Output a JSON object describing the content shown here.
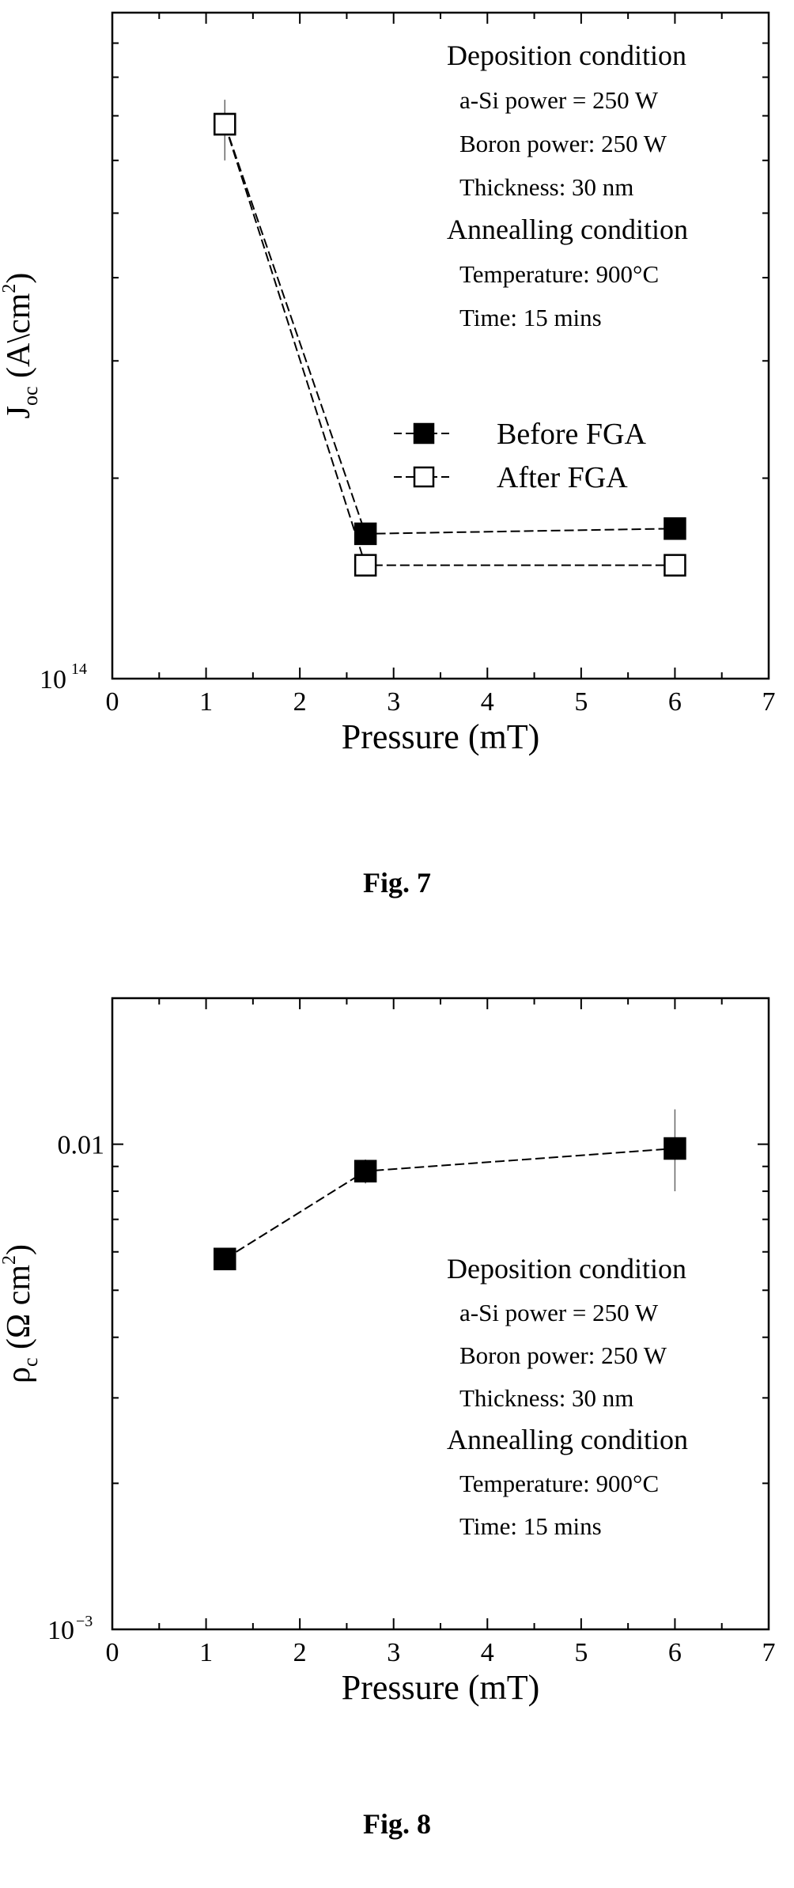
{
  "figures": [
    {
      "caption": "Fig. 7"
    },
    {
      "caption": "Fig. 8"
    }
  ],
  "chart_data": [
    {
      "type": "line",
      "title": "",
      "xlabel": "Pressure (mT)",
      "ylabel": "J0c (A\\cm2)",
      "ylabel_parts": {
        "main": "J",
        "sub": "oc",
        "unit_open": " (A\\cm",
        "unit_sup": "2",
        "unit_close": ")"
      },
      "xlim": [
        0,
        7
      ],
      "ylim": [
        100000000000000.0,
        1000000000000000.0
      ],
      "y_scale": "log",
      "xticks": [
        0,
        1,
        2,
        3,
        4,
        5,
        6,
        7
      ],
      "x_tick_labels": [
        "0",
        "1",
        "2",
        "3",
        "4",
        "5",
        "6",
        "7"
      ],
      "y_tick_label": {
        "base": "10",
        "exp": "14"
      },
      "series": [
        {
          "name": "Before FGA",
          "marker": "filled-square",
          "x": [
            1.2,
            2.7,
            6.0
          ],
          "y": [
            680000000000000.0,
            165000000000000.0,
            168000000000000.0
          ]
        },
        {
          "name": "After FGA",
          "marker": "open-square",
          "x": [
            1.2,
            2.7,
            6.0
          ],
          "y": [
            680000000000000.0,
            148000000000000.0,
            148000000000000.0
          ]
        }
      ],
      "error_bars": [
        {
          "x": 1.2,
          "y_low": 600000000000000.0,
          "y_high": 740000000000000.0
        }
      ],
      "legend_placement": "middle-right",
      "annotations": [
        {
          "text": "Deposition condition",
          "style": "heading"
        },
        {
          "text": "a-Si power = 250 W",
          "style": "item"
        },
        {
          "text": "Boron power: 250 W",
          "style": "item"
        },
        {
          "text": "Thickness: 30 nm",
          "style": "item"
        },
        {
          "text": "Annealling condition",
          "style": "heading"
        },
        {
          "text": "Temperature: 900°C",
          "style": "item"
        },
        {
          "text": "Time: 15 mins",
          "style": "item"
        }
      ]
    },
    {
      "type": "line",
      "title": "",
      "xlabel": "Pressure (mT)",
      "ylabel": "ρc (Ω cm2)",
      "ylabel_parts": {
        "main": "ρ",
        "sub": "c",
        "unit_open": " (Ω cm",
        "unit_sup": "2",
        "unit_close": ")"
      },
      "xlim": [
        0,
        7
      ],
      "ylim": [
        0.001,
        0.02
      ],
      "y_scale": "log",
      "xticks": [
        0,
        1,
        2,
        3,
        4,
        5,
        6,
        7
      ],
      "x_tick_labels": [
        "0",
        "1",
        "2",
        "3",
        "4",
        "5",
        "6",
        "7"
      ],
      "y_tick_labels": [
        {
          "value": 0.01,
          "label": "0.01"
        },
        {
          "value": 0.001,
          "base": "10",
          "exp": "−3"
        }
      ],
      "series": [
        {
          "x": [
            1.2,
            2.7,
            6.0
          ],
          "y": [
            0.0058,
            0.0088,
            0.0098
          ],
          "marker": "filled-square"
        }
      ],
      "error_bars": [
        {
          "x": 1.2,
          "y_low": 0.0055,
          "y_high": 0.0061
        },
        {
          "x": 2.7,
          "y_low": 0.0083,
          "y_high": 0.0093
        },
        {
          "x": 6.0,
          "y_low": 0.008,
          "y_high": 0.0118
        }
      ],
      "annotations": [
        {
          "text": "Deposition condition",
          "style": "heading"
        },
        {
          "text": "a-Si power = 250 W",
          "style": "item"
        },
        {
          "text": "Boron power: 250 W",
          "style": "item"
        },
        {
          "text": "Thickness: 30 nm",
          "style": "item"
        },
        {
          "text": "Annealling condition",
          "style": "heading"
        },
        {
          "text": "Temperature: 900°C",
          "style": "item"
        },
        {
          "text": "Time: 15 mins",
          "style": "item"
        }
      ]
    }
  ]
}
